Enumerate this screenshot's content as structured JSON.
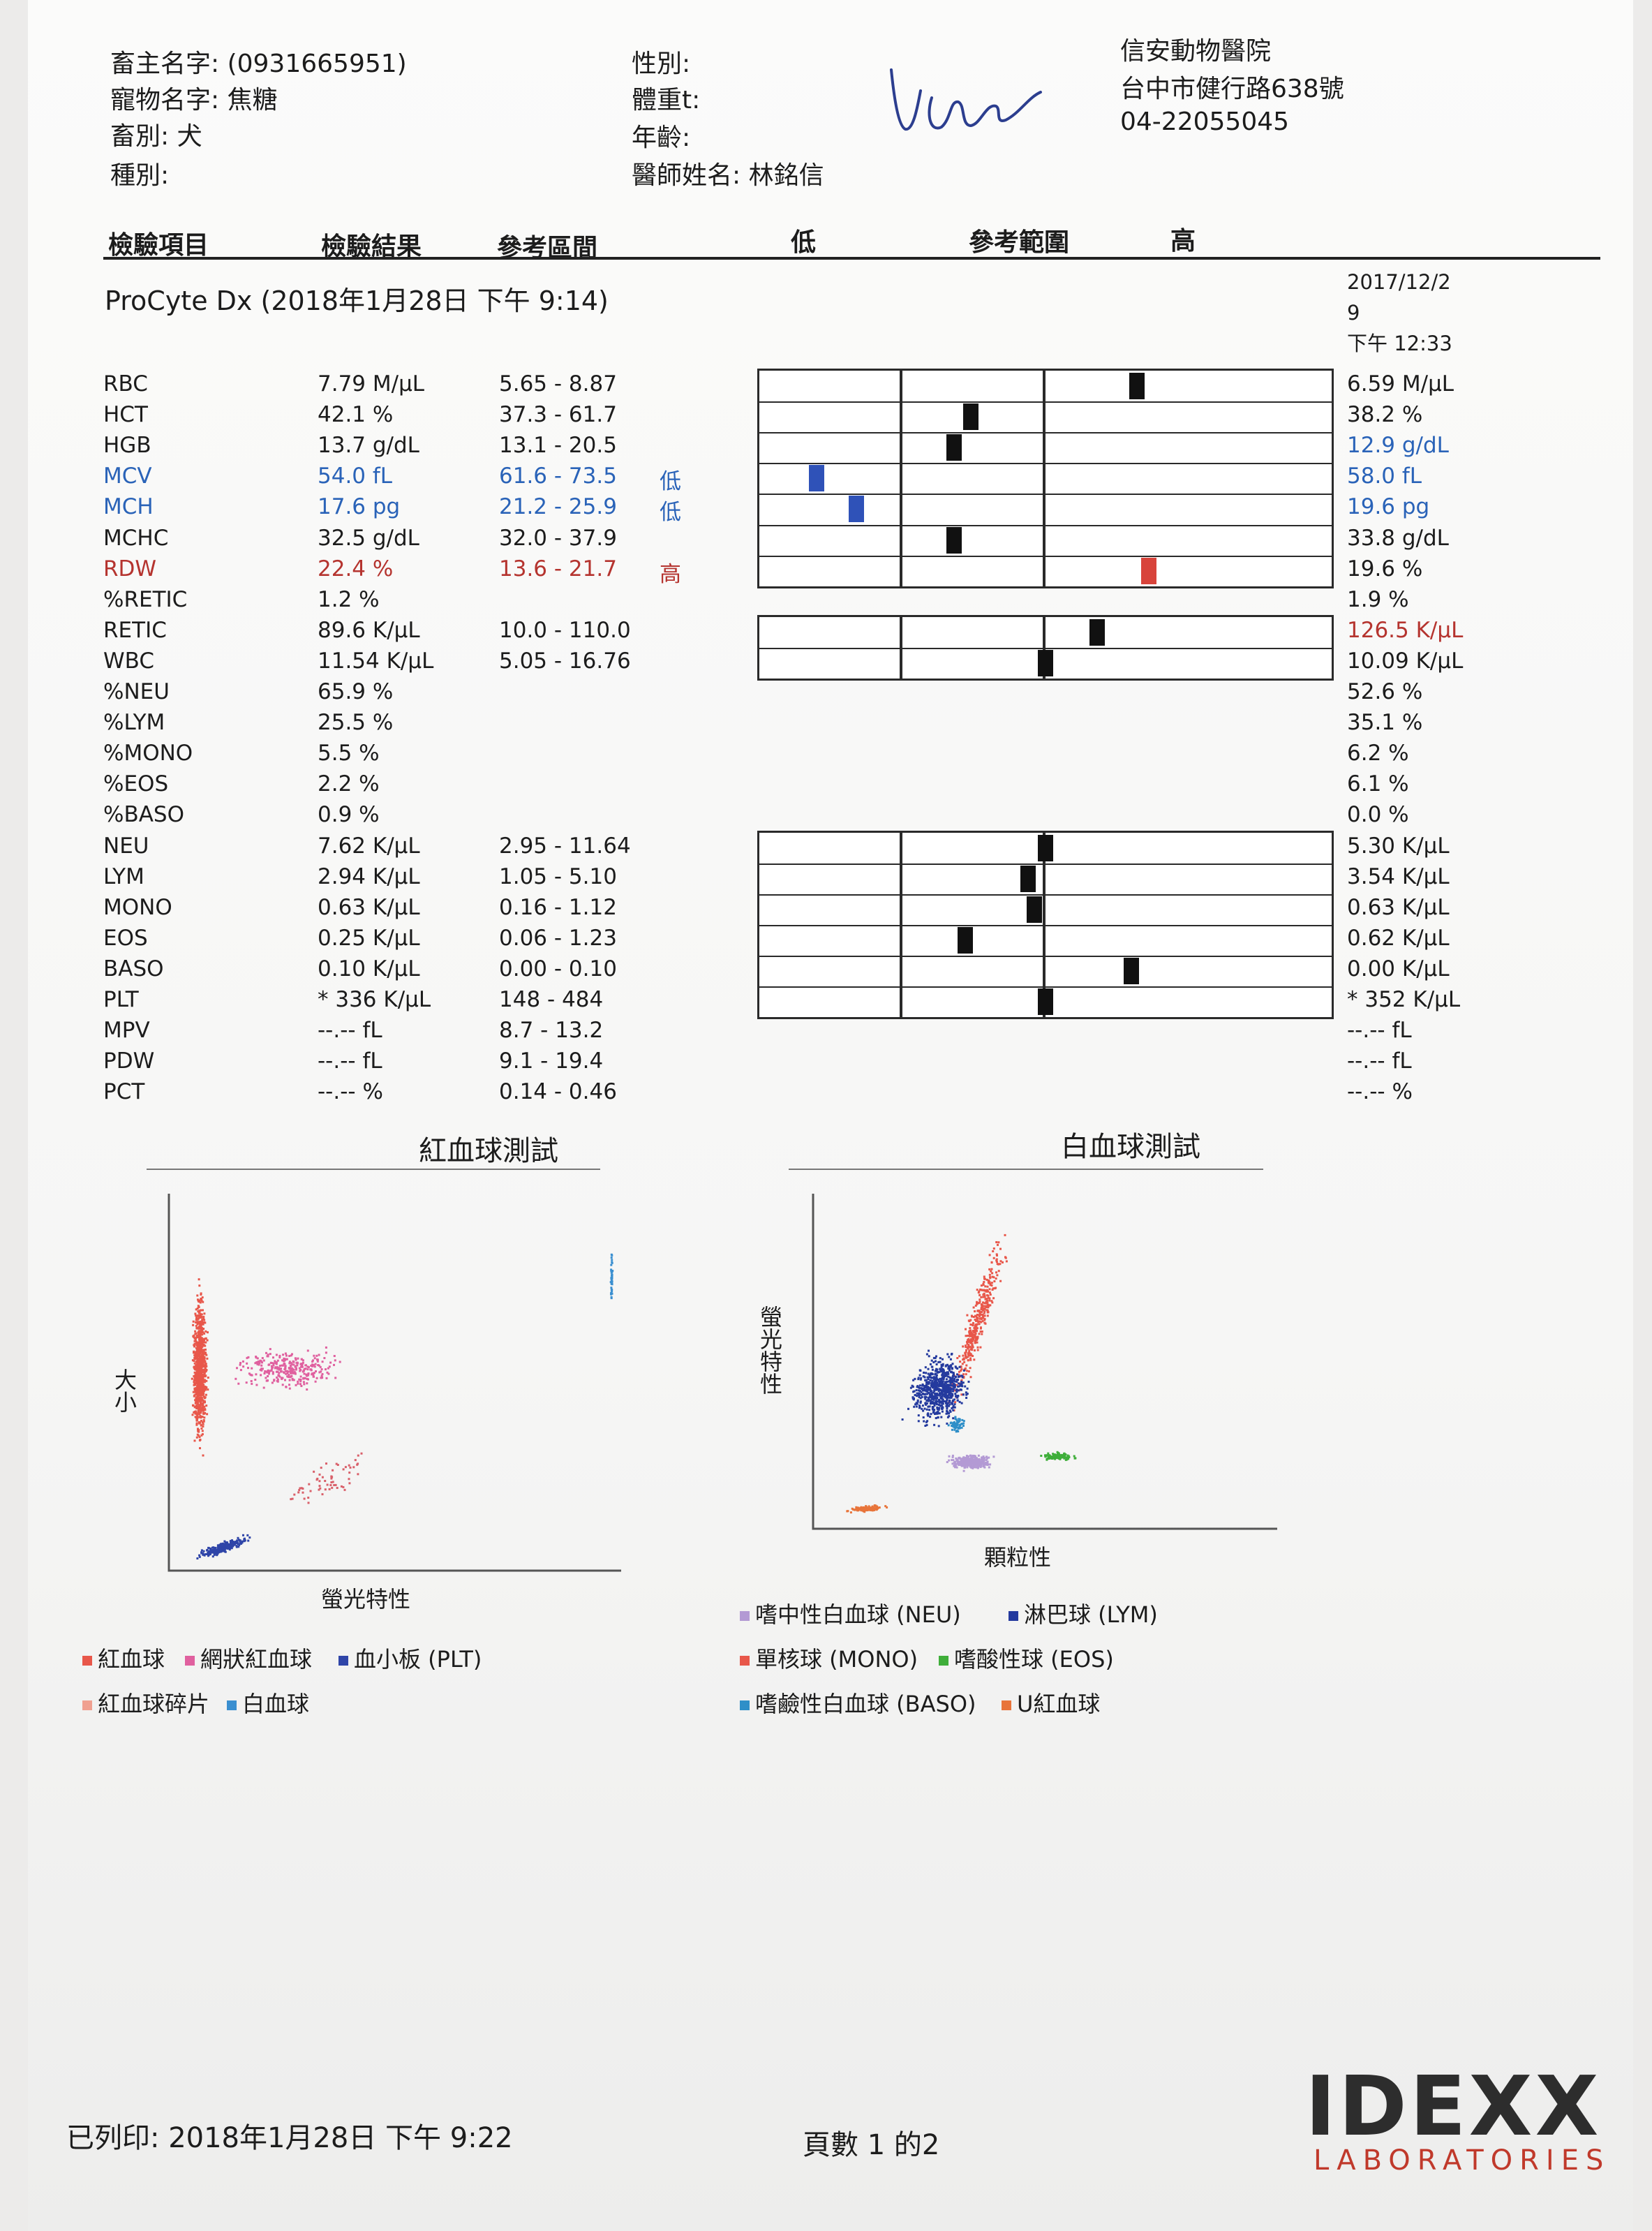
{
  "header": {
    "owner": "畜主名字: (0931665951)",
    "pet": "寵物名字: 焦糖",
    "species": "畜別: 犬",
    "breed": "種別:",
    "sex": "性別:",
    "weight": "體重t:",
    "age": "年齡:",
    "doctor": "醫師姓名: 林銘信",
    "clinic_name": "信安動物醫院",
    "clinic_address": "台中市健行路638號",
    "clinic_phone": "04-22055045"
  },
  "columns": {
    "item": "檢驗項目",
    "result": "檢驗結果",
    "interval": "參考區間",
    "low": "低",
    "range": "參考範圍",
    "high": "高"
  },
  "instrument": "ProCyte Dx (2018年1月28日 下午 9:14)",
  "previous": {
    "date_line1": "2017/12/2",
    "date_line2": "9",
    "time": "下午 12:33"
  },
  "rows": [
    {
      "name": "RBC",
      "result": "7.79 M/µL",
      "ref": "5.65 - 8.87",
      "flag": "",
      "prev": "6.59 M/µL",
      "status": "normal",
      "prev_status": "normal",
      "pos": 0.66,
      "group": 1
    },
    {
      "name": "HCT",
      "result": "42.1 %",
      "ref": "37.3 - 61.7",
      "flag": "",
      "prev": "38.2 %",
      "status": "normal",
      "prev_status": "normal",
      "pos": 0.37,
      "group": 1
    },
    {
      "name": "HGB",
      "result": "13.7 g/dL",
      "ref": "13.1 - 20.5",
      "flag": "",
      "prev": "12.9 g/dL",
      "status": "normal",
      "prev_status": "low",
      "pos": 0.34,
      "group": 1
    },
    {
      "name": "MCV",
      "result": "54.0 fL",
      "ref": "61.6 - 73.5",
      "flag": "低",
      "prev": "58.0 fL",
      "status": "low",
      "prev_status": "low",
      "pos": 0.1,
      "group": 1
    },
    {
      "name": "MCH",
      "result": "17.6 pg",
      "ref": "21.2 - 25.9",
      "flag": "低",
      "prev": "19.6 pg",
      "status": "low",
      "prev_status": "low",
      "pos": 0.17,
      "group": 1
    },
    {
      "name": "MCHC",
      "result": "32.5 g/dL",
      "ref": "32.0 - 37.9",
      "flag": "",
      "prev": "33.8 g/dL",
      "status": "normal",
      "prev_status": "normal",
      "pos": 0.34,
      "group": 1
    },
    {
      "name": "RDW",
      "result": "22.4 %",
      "ref": "13.6 - 21.7",
      "flag": "高",
      "prev": "19.6 %",
      "status": "high",
      "prev_status": "normal",
      "pos": 0.68,
      "group": 1
    },
    {
      "name": "%RETIC",
      "result": "1.2 %",
      "ref": "",
      "flag": "",
      "prev": "1.9 %",
      "status": "normal",
      "prev_status": "normal",
      "pos": null,
      "group": 0
    },
    {
      "name": "RETIC",
      "result": "89.6 K/µL",
      "ref": "10.0 - 110.0",
      "flag": "",
      "prev": "126.5 K/µL",
      "status": "normal",
      "prev_status": "high",
      "pos": 0.59,
      "group": 2
    },
    {
      "name": "WBC",
      "result": "11.54 K/µL",
      "ref": "5.05 - 16.76",
      "flag": "",
      "prev": "10.09 K/µL",
      "status": "normal",
      "prev_status": "normal",
      "pos": 0.5,
      "group": 2
    },
    {
      "name": "%NEU",
      "result": "65.9 %",
      "ref": "",
      "flag": "",
      "prev": "52.6 %",
      "status": "normal",
      "prev_status": "normal",
      "pos": null,
      "group": 0
    },
    {
      "name": "%LYM",
      "result": "25.5 %",
      "ref": "",
      "flag": "",
      "prev": "35.1 %",
      "status": "normal",
      "prev_status": "normal",
      "pos": null,
      "group": 0
    },
    {
      "name": "%MONO",
      "result": "5.5 %",
      "ref": "",
      "flag": "",
      "prev": "6.2 %",
      "status": "normal",
      "prev_status": "normal",
      "pos": null,
      "group": 0
    },
    {
      "name": "%EOS",
      "result": "2.2 %",
      "ref": "",
      "flag": "",
      "prev": "6.1 %",
      "status": "normal",
      "prev_status": "normal",
      "pos": null,
      "group": 0
    },
    {
      "name": "%BASO",
      "result": "0.9 %",
      "ref": "",
      "flag": "",
      "prev": "0.0 %",
      "status": "normal",
      "prev_status": "normal",
      "pos": null,
      "group": 0
    },
    {
      "name": "NEU",
      "result": "7.62 K/µL",
      "ref": "2.95 - 11.64",
      "flag": "",
      "prev": "5.30 K/µL",
      "status": "normal",
      "prev_status": "normal",
      "pos": 0.5,
      "group": 3
    },
    {
      "name": "LYM",
      "result": "2.94 K/µL",
      "ref": "1.05 - 5.10",
      "flag": "",
      "prev": "3.54 K/µL",
      "status": "normal",
      "prev_status": "normal",
      "pos": 0.47,
      "group": 3
    },
    {
      "name": "MONO",
      "result": "0.63 K/µL",
      "ref": "0.16 - 1.12",
      "flag": "",
      "prev": "0.63 K/µL",
      "status": "normal",
      "prev_status": "normal",
      "pos": 0.48,
      "group": 3
    },
    {
      "name": "EOS",
      "result": "0.25 K/µL",
      "ref": "0.06 - 1.23",
      "flag": "",
      "prev": "0.62 K/µL",
      "status": "normal",
      "prev_status": "normal",
      "pos": 0.36,
      "group": 3
    },
    {
      "name": "BASO",
      "result": "0.10 K/µL",
      "ref": "0.00 - 0.10",
      "flag": "",
      "prev": "0.00 K/µL",
      "status": "normal",
      "prev_status": "normal",
      "pos": 0.65,
      "group": 3
    },
    {
      "name": "PLT",
      "result": "* 336 K/µL",
      "ref": "148 - 484",
      "flag": "",
      "prev": "* 352 K/µL",
      "status": "normal",
      "prev_status": "normal",
      "pos": 0.5,
      "group": 3
    },
    {
      "name": "MPV",
      "result": "--.-- fL",
      "ref": "8.7 - 13.2",
      "flag": "",
      "prev": "--.-- fL",
      "status": "normal",
      "prev_status": "normal",
      "pos": null,
      "group": 0
    },
    {
      "name": "PDW",
      "result": "--.-- fL",
      "ref": "9.1 - 19.4",
      "flag": "",
      "prev": "--.-- fL",
      "status": "normal",
      "prev_status": "normal",
      "pos": null,
      "group": 0
    },
    {
      "name": "PCT",
      "result": "--.-- %",
      "ref": "0.14 - 0.46",
      "flag": "",
      "prev": "--.-- %",
      "status": "normal",
      "prev_status": "normal",
      "pos": null,
      "group": 0
    }
  ],
  "rbc_plot": {
    "title": "紅血球測試",
    "xlabel": "螢光特性",
    "ylabel": "大小",
    "legend": [
      {
        "label": "紅血球",
        "color": "#e8574a"
      },
      {
        "label": "網狀紅血球",
        "color": "#e0609f"
      },
      {
        "label": "血小板 (PLT)",
        "color": "#2f45a8"
      },
      {
        "label": "紅血球碎片",
        "color": "#f0a090"
      },
      {
        "label": "白血球",
        "color": "#3a8fd0"
      }
    ]
  },
  "wbc_plot": {
    "title": "白血球測試",
    "xlabel": "顆粒性",
    "ylabel": "螢光特性",
    "legend": [
      {
        "label": "嗜中性白血球 (NEU)",
        "color": "#b39ad4"
      },
      {
        "label": "淋巴球 (LYM)",
        "color": "#243a9e"
      },
      {
        "label": "單核球 (MONO)",
        "color": "#e8574a"
      },
      {
        "label": "嗜酸性球 (EOS)",
        "color": "#3fae3a"
      },
      {
        "label": "嗜鹼性白血球 (BASO)",
        "color": "#2f8fc8"
      },
      {
        "label": "U紅血球",
        "color": "#e8743a"
      }
    ]
  },
  "footer": {
    "printed": "已列印: 2018年1月28日 下午 9:22",
    "page": "頁數 1 的2",
    "logo_main": "IDEXX",
    "logo_sub": "LABORATORIES"
  }
}
